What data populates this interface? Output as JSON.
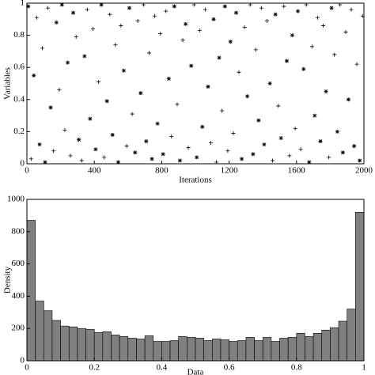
{
  "chart_data": [
    {
      "type": "scatter",
      "xlabel": "Iterations",
      "ylabel": "Variables",
      "xlim": [
        0,
        2000
      ],
      "xticks": [
        0,
        400,
        800,
        1200,
        1600,
        2000
      ],
      "ylim": [
        0,
        1
      ],
      "yticks": [
        0,
        0.2,
        0.4,
        0.6,
        0.8,
        1
      ],
      "color": "#000000",
      "x": [
        8,
        25,
        41,
        58,
        75,
        92,
        108,
        125,
        141,
        158,
        175,
        192,
        208,
        225,
        242,
        258,
        275,
        292,
        308,
        325,
        342,
        358,
        375,
        392,
        408,
        425,
        442,
        458,
        475,
        492,
        508,
        525,
        542,
        558,
        575,
        592,
        608,
        625,
        642,
        658,
        675,
        692,
        708,
        725,
        742,
        758,
        775,
        792,
        808,
        825,
        842,
        858,
        875,
        892,
        908,
        925,
        942,
        958,
        975,
        992,
        1008,
        1025,
        1041,
        1058,
        1075,
        1092,
        1108,
        1125,
        1141,
        1158,
        1175,
        1192,
        1208,
        1225,
        1242,
        1258,
        1275,
        1292,
        1308,
        1325,
        1342,
        1358,
        1375,
        1392,
        1408,
        1425,
        1442,
        1458,
        1475,
        1492,
        1508,
        1525,
        1542,
        1558,
        1575,
        1592,
        1608,
        1625,
        1642,
        1658,
        1675,
        1692,
        1708,
        1725,
        1742,
        1758,
        1775,
        1792,
        1808,
        1825,
        1842,
        1858,
        1875,
        1892,
        1908,
        1925,
        1942,
        1958,
        1975,
        1992
      ],
      "values": [
        0.98,
        0.03,
        0.55,
        0.91,
        0.12,
        0.72,
        0.01,
        0.97,
        0.35,
        0.08,
        0.88,
        0.46,
        0.99,
        0.21,
        0.63,
        0.05,
        0.94,
        0.79,
        0.15,
        0.02,
        0.67,
        0.96,
        0.28,
        0.84,
        0.09,
        0.51,
        0.99,
        0.04,
        0.39,
        0.93,
        0.18,
        0.74,
        0.01,
        0.86,
        0.58,
        0.11,
        0.97,
        0.31,
        0.07,
        0.89,
        0.44,
        0.99,
        0.14,
        0.69,
        0.03,
        0.92,
        0.25,
        0.81,
        0.06,
        0.95,
        0.53,
        0.17,
        0.98,
        0.37,
        0.02,
        0.77,
        0.87,
        0.1,
        0.61,
        0.99,
        0.04,
        0.83,
        0.23,
        0.96,
        0.48,
        0.13,
        0.9,
        0.01,
        0.66,
        0.33,
        0.98,
        0.08,
        0.76,
        0.19,
        0.94,
        0.57,
        0.03,
        0.85,
        0.42,
        0.99,
        0.06,
        0.71,
        0.27,
        0.97,
        0.12,
        0.89,
        0.5,
        0.02,
        0.93,
        0.36,
        0.16,
        0.98,
        0.64,
        0.05,
        0.8,
        0.22,
        0.95,
        0.09,
        0.59,
        0.99,
        0.01,
        0.73,
        0.3,
        0.91,
        0.14,
        0.86,
        0.45,
        0.04,
        0.97,
        0.68,
        0.2,
        0.99,
        0.07,
        0.82,
        0.4,
        0.96,
        0.11,
        0.62,
        0.02,
        0.92
      ]
    },
    {
      "type": "histogram",
      "xlabel": "Data",
      "ylabel": "Density",
      "xlim": [
        0,
        1
      ],
      "xticks": [
        0,
        0.2,
        0.4,
        0.6,
        0.8,
        1
      ],
      "ylim": [
        0,
        1000
      ],
      "yticks": [
        0,
        200,
        400,
        600,
        800,
        1000
      ],
      "color": "#808080",
      "bins": [
        0,
        0.025,
        0.05,
        0.075,
        0.1,
        0.125,
        0.15,
        0.175,
        0.2,
        0.225,
        0.25,
        0.275,
        0.3,
        0.325,
        0.35,
        0.375,
        0.4,
        0.425,
        0.45,
        0.475,
        0.5,
        0.525,
        0.55,
        0.575,
        0.6,
        0.625,
        0.65,
        0.675,
        0.7,
        0.725,
        0.75,
        0.775,
        0.8,
        0.825,
        0.85,
        0.875,
        0.9,
        0.925,
        0.95,
        0.975,
        1
      ],
      "values": [
        870,
        370,
        310,
        250,
        215,
        210,
        200,
        195,
        175,
        180,
        160,
        150,
        140,
        135,
        155,
        120,
        120,
        125,
        150,
        145,
        140,
        125,
        135,
        130,
        120,
        125,
        145,
        125,
        145,
        120,
        140,
        145,
        170,
        150,
        170,
        190,
        205,
        245,
        320,
        920
      ]
    }
  ]
}
